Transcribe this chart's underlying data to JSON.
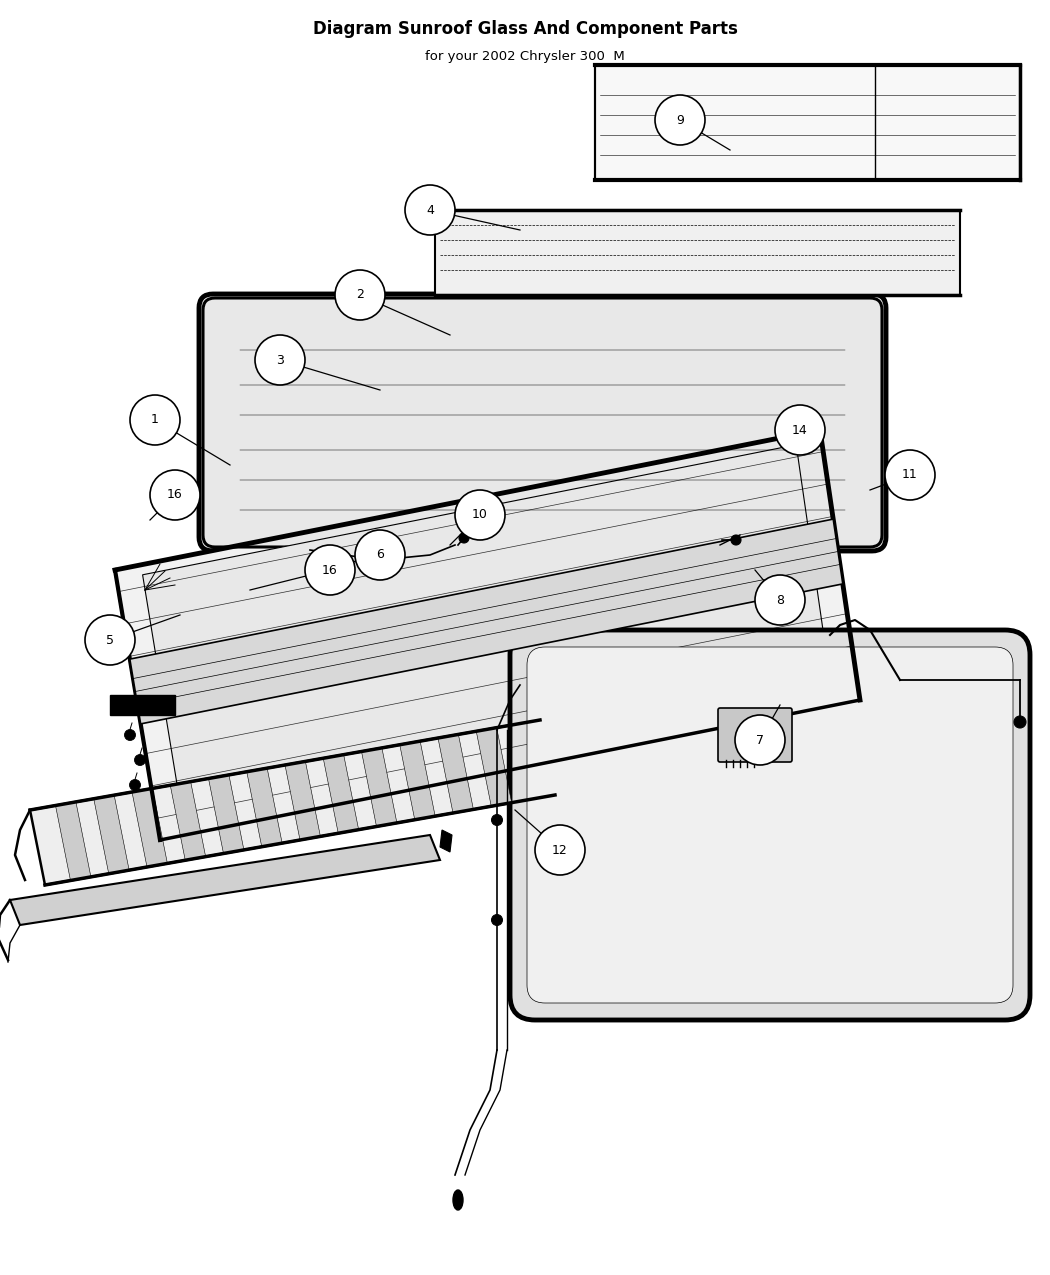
{
  "title": "Diagram Sunroof Glass And Component Parts",
  "subtitle": "for your 2002 Chrysler 300  M",
  "bg": "#ffffff",
  "lc": "#000000",
  "parts": {
    "1": {
      "lxy": [
        1.55,
        8.55
      ],
      "txy": [
        2.3,
        8.1
      ]
    },
    "2": {
      "lxy": [
        3.6,
        9.8
      ],
      "txy": [
        4.5,
        9.4
      ]
    },
    "3": {
      "lxy": [
        2.8,
        9.15
      ],
      "txy": [
        3.8,
        8.85
      ]
    },
    "4": {
      "lxy": [
        4.3,
        10.65
      ],
      "txy": [
        5.2,
        10.45
      ]
    },
    "5": {
      "lxy": [
        1.1,
        6.35
      ],
      "txy": [
        1.8,
        6.6
      ]
    },
    "6": {
      "lxy": [
        3.8,
        7.2
      ],
      "txy": [
        3.2,
        7.05
      ]
    },
    "7": {
      "lxy": [
        7.6,
        5.35
      ],
      "txy": [
        7.8,
        5.7
      ]
    },
    "8": {
      "lxy": [
        7.8,
        6.75
      ],
      "txy": [
        7.55,
        7.05
      ]
    },
    "9": {
      "lxy": [
        6.8,
        11.55
      ],
      "txy": [
        7.3,
        11.25
      ]
    },
    "10": {
      "lxy": [
        4.8,
        7.6
      ],
      "txy": [
        4.5,
        7.3
      ]
    },
    "11": {
      "lxy": [
        9.1,
        8.0
      ],
      "txy": [
        8.7,
        7.85
      ]
    },
    "12": {
      "lxy": [
        5.6,
        4.25
      ],
      "txy": [
        5.15,
        4.65
      ]
    },
    "14": {
      "lxy": [
        8.0,
        8.45
      ],
      "txy": [
        7.5,
        8.3
      ]
    },
    "16a": {
      "lxy": [
        1.75,
        7.8
      ],
      "txy": [
        1.5,
        7.55
      ]
    },
    "16b": {
      "lxy": [
        3.3,
        7.05
      ],
      "txy": [
        2.5,
        6.85
      ]
    }
  }
}
